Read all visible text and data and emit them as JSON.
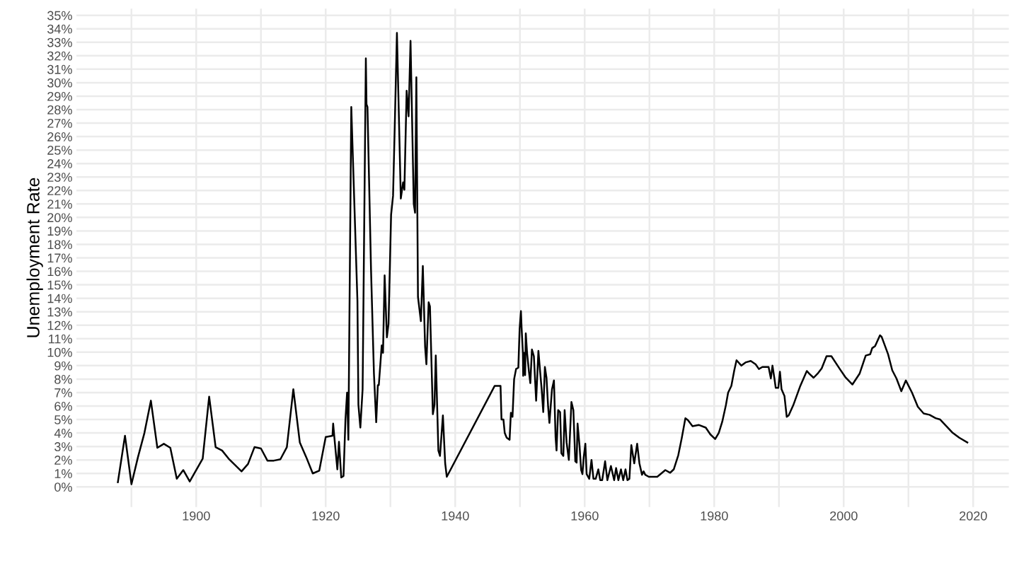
{
  "chart_data": {
    "type": "line",
    "ylabel": "Unemployment Rate",
    "grid": true,
    "legend": false,
    "marker": "none",
    "line_style": "solid",
    "xlim": [
      1881.5,
      2025.5
    ],
    "ylim": [
      -1.5,
      35.5
    ],
    "xticks": [
      {
        "value": 1890,
        "label": null
      },
      1900,
      {
        "value": 1910,
        "label": null
      },
      1920,
      {
        "value": 1930,
        "label": null
      },
      1940,
      {
        "value": 1950,
        "label": null
      },
      1960,
      {
        "value": 1970,
        "label": null
      },
      1980,
      {
        "value": 1990,
        "label": null
      },
      2000,
      {
        "value": 2010,
        "label": null
      },
      2020
    ],
    "yticks": [
      {
        "value": 0,
        "label": "0%"
      },
      {
        "value": 1,
        "label": "1%"
      },
      {
        "value": 2,
        "label": "2%"
      },
      {
        "value": 3,
        "label": "3%"
      },
      {
        "value": 4,
        "label": "4%"
      },
      {
        "value": 5,
        "label": "5%"
      },
      {
        "value": 6,
        "label": "6%"
      },
      {
        "value": 7,
        "label": "7%"
      },
      {
        "value": 8,
        "label": "8%"
      },
      {
        "value": 9,
        "label": "9%"
      },
      {
        "value": 10,
        "label": "10%"
      },
      {
        "value": 11,
        "label": "11%"
      },
      {
        "value": 12,
        "label": "12%"
      },
      {
        "value": 13,
        "label": "13%"
      },
      {
        "value": 14,
        "label": "14%"
      },
      {
        "value": 15,
        "label": "15%"
      },
      {
        "value": 16,
        "label": "16%"
      },
      {
        "value": 17,
        "label": "17%"
      },
      {
        "value": 18,
        "label": "18%"
      },
      {
        "value": 19,
        "label": "19%"
      },
      {
        "value": 20,
        "label": "20%"
      },
      {
        "value": 21,
        "label": "21%"
      },
      {
        "value": 22,
        "label": "22%"
      },
      {
        "value": 23,
        "label": "23%"
      },
      {
        "value": 24,
        "label": "24%"
      },
      {
        "value": 25,
        "label": "25%"
      },
      {
        "value": 26,
        "label": "26%"
      },
      {
        "value": 27,
        "label": "27%"
      },
      {
        "value": 28,
        "label": "28%"
      },
      {
        "value": 29,
        "label": "29%"
      },
      {
        "value": 30,
        "label": "30%"
      },
      {
        "value": 31,
        "label": "31%"
      },
      {
        "value": 32,
        "label": "32%"
      },
      {
        "value": 33,
        "label": "33%"
      },
      {
        "value": 34,
        "label": "34%"
      },
      {
        "value": 35,
        "label": "35%"
      }
    ],
    "series": [
      {
        "color": "#000000",
        "x": [
          1887.9,
          1889.0,
          1890.0,
          1891,
          1892,
          1893,
          1894,
          1895,
          1896,
          1897,
          1898,
          1899,
          1901,
          1902,
          1903,
          1904,
          1905,
          1907,
          1908,
          1909,
          1910,
          1911,
          1912,
          1913,
          1914,
          1915,
          1916,
          1917,
          1918,
          1919,
          1920.0,
          1921.05,
          1921.15,
          1921.35,
          1921.8,
          1922.05,
          1922.4,
          1922.75,
          1923.05,
          1923.3,
          1923.5,
          1923.95,
          1924.9,
          1925.05,
          1925.35,
          1925.7,
          1926.2,
          1926.3,
          1926.45,
          1927.0,
          1927.45,
          1927.8,
          1928.05,
          1928.2,
          1928.65,
          1928.85,
          1929.1,
          1929.45,
          1929.7,
          1930.1,
          1930.4,
          1930.7,
          1931.0,
          1931.6,
          1931.95,
          1932.15,
          1932.5,
          1932.8,
          1933.1,
          1933.6,
          1933.8,
          1934.0,
          1934.25,
          1934.7,
          1935.0,
          1935.35,
          1935.55,
          1935.9,
          1936.1,
          1936.55,
          1936.8,
          1937.0,
          1937.4,
          1937.65,
          1938.1,
          1938.45,
          1938.7,
          1946.1,
          1947.0,
          1947.15,
          1947.45,
          1947.65,
          1947.95,
          1948.4,
          1948.6,
          1948.85,
          1949.1,
          1949.4,
          1949.75,
          1949.95,
          1950.15,
          1950.25,
          1950.45,
          1950.5,
          1950.65,
          1950.8,
          1950.9,
          1951.1,
          1951.4,
          1951.6,
          1951.85,
          1952.15,
          1952.5,
          1952.85,
          1953.1,
          1953.35,
          1953.6,
          1953.85,
          1954.1,
          1954.35,
          1954.55,
          1954.95,
          1955.25,
          1955.5,
          1955.65,
          1955.9,
          1956.2,
          1956.4,
          1956.7,
          1956.9,
          1957.2,
          1957.55,
          1957.95,
          1958.25,
          1958.55,
          1958.75,
          1958.9,
          1959.2,
          1959.45,
          1959.65,
          1959.85,
          1960.1,
          1960.3,
          1960.7,
          1961.05,
          1961.35,
          1961.7,
          1962.1,
          1962.4,
          1962.7,
          1963.15,
          1963.5,
          1964.05,
          1964.55,
          1964.85,
          1965.2,
          1965.6,
          1965.95,
          1966.3,
          1966.6,
          1966.9,
          1967.2,
          1967.65,
          1968.1,
          1968.45,
          1968.85,
          1969.1,
          1969.35,
          1969.9,
          1971.2,
          1971.7,
          1972.45,
          1973.2,
          1973.75,
          1974.45,
          1975.0,
          1975.55,
          1975.95,
          1976.65,
          1977.6,
          1978.7,
          1979.4,
          1980.15,
          1980.7,
          1981.25,
          1981.8,
          1982.15,
          1982.65,
          1983.1,
          1983.45,
          1984.2,
          1984.9,
          1985.65,
          1986.4,
          1986.9,
          1987.45,
          1988.4,
          1988.75,
          1989.0,
          1989.3,
          1989.5,
          1989.9,
          1990.15,
          1990.4,
          1990.85,
          1991.2,
          1991.5,
          1992.2,
          1993.3,
          1994.3,
          1994.7,
          1995.35,
          1996.05,
          1996.6,
          1997.35,
          1998.1,
          1999.4,
          2000.25,
          2001.35,
          2002.45,
          2003.4,
          2004.1,
          2004.4,
          2004.85,
          2005.6,
          2005.85,
          2006.85,
          2007.5,
          2008.15,
          2008.9,
          2009.6,
          2010.55,
          2011.45,
          2012.35,
          2013.25,
          2014.2,
          2014.9,
          2016.75,
          2017.85,
          2019.1
        ],
        "values": [
          0.35,
          3.8,
          0.2,
          2.2,
          4.0,
          6.4,
          2.9,
          3.2,
          2.9,
          0.6,
          1.25,
          0.4,
          2.1,
          6.7,
          2.95,
          2.7,
          2.1,
          1.15,
          1.7,
          2.95,
          2.85,
          1.95,
          1.95,
          2.05,
          2.95,
          7.25,
          3.3,
          2.2,
          1.0,
          1.2,
          3.7,
          3.8,
          4.7,
          3.6,
          1.3,
          3.35,
          0.7,
          0.8,
          5.0,
          7.0,
          3.5,
          28.2,
          13.8,
          6.1,
          4.4,
          7.25,
          31.8,
          28.4,
          28.2,
          16.1,
          8.4,
          4.8,
          7.55,
          7.55,
          10.5,
          9.95,
          15.7,
          11.1,
          12.1,
          20.2,
          21.6,
          27.5,
          33.7,
          21.4,
          22.6,
          22.05,
          29.4,
          27.5,
          33.1,
          21.0,
          20.35,
          30.4,
          14.1,
          12.3,
          16.4,
          10.4,
          9.1,
          13.7,
          13.4,
          5.4,
          6.1,
          9.75,
          2.7,
          2.3,
          5.3,
          1.75,
          0.75,
          7.5,
          7.5,
          5.0,
          5.0,
          4.0,
          3.65,
          3.5,
          5.5,
          5.2,
          8.0,
          8.75,
          8.85,
          11.75,
          13.05,
          11.85,
          9.95,
          8.25,
          9.95,
          8.3,
          11.4,
          9.95,
          8.5,
          7.7,
          10.2,
          9.7,
          6.4,
          10.1,
          8.65,
          7.25,
          5.55,
          8.9,
          8.1,
          5.95,
          4.75,
          7.25,
          7.9,
          3.7,
          2.7,
          5.7,
          5.55,
          2.5,
          2.3,
          5.7,
          3.3,
          2.0,
          6.3,
          5.7,
          1.9,
          1.8,
          4.7,
          3.05,
          1.25,
          0.95,
          2.2,
          3.2,
          0.95,
          0.6,
          2.0,
          0.6,
          0.6,
          1.3,
          0.5,
          0.5,
          1.9,
          0.5,
          1.55,
          0.5,
          1.4,
          0.5,
          1.3,
          0.5,
          1.3,
          0.5,
          0.6,
          3.1,
          1.75,
          3.2,
          1.75,
          0.9,
          1.15,
          0.9,
          0.75,
          0.75,
          0.95,
          1.25,
          1.05,
          1.3,
          2.35,
          3.65,
          5.1,
          4.95,
          4.5,
          4.6,
          4.4,
          3.9,
          3.55,
          4.0,
          4.85,
          6.05,
          7.0,
          7.5,
          8.65,
          9.4,
          9.0,
          9.25,
          9.35,
          9.1,
          8.75,
          8.9,
          8.9,
          8.05,
          9.0,
          8.05,
          7.35,
          7.35,
          8.55,
          7.25,
          6.75,
          5.2,
          5.3,
          6.05,
          7.5,
          8.6,
          8.4,
          8.1,
          8.45,
          8.8,
          9.7,
          9.7,
          8.75,
          8.15,
          7.6,
          8.4,
          9.75,
          9.85,
          10.3,
          10.45,
          11.25,
          11.15,
          9.85,
          8.65,
          8.05,
          7.1,
          7.9,
          7.0,
          5.95,
          5.45,
          5.35,
          5.1,
          5.0,
          4.05,
          3.65,
          3.3
        ]
      }
    ]
  }
}
